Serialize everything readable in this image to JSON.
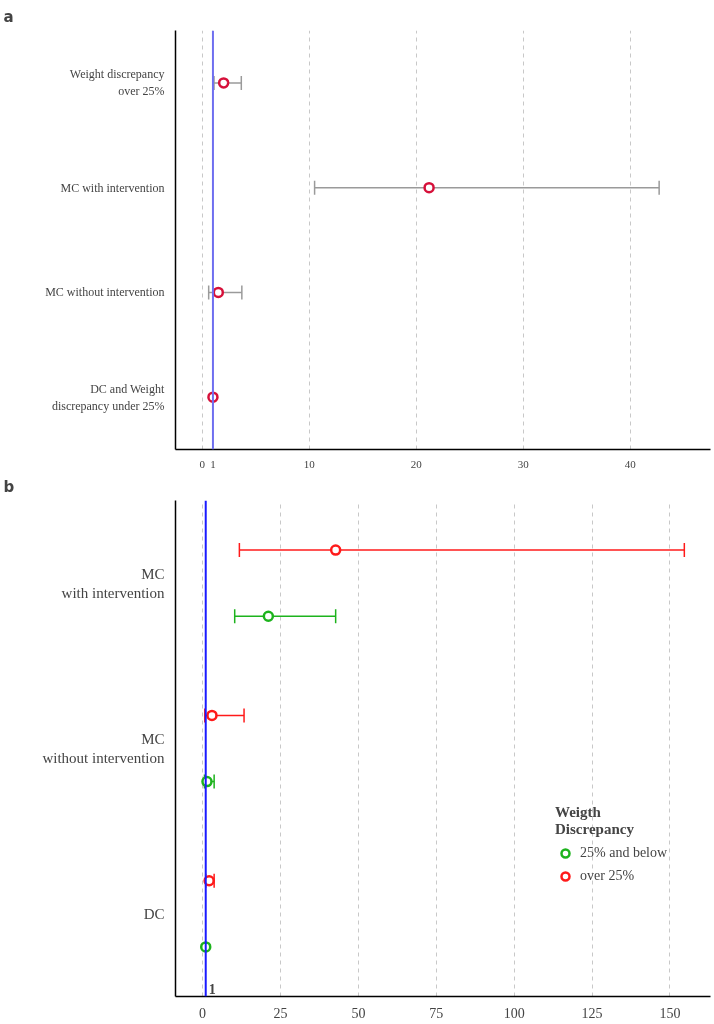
{
  "chart_data": [
    {
      "type": "scatter",
      "title": "a",
      "orientation": "horizontal",
      "categories": [
        "Weight discrepancy\nover 25%",
        "MC with intervention",
        "MC without intervention",
        "DC and Weight\ndiscrepancy under 25%"
      ],
      "series": [
        {
          "color": "#d6103a",
          "values": [
            2.0,
            21.2,
            1.5,
            1.0
          ],
          "errors": [
            [
              1.1,
              3.65
            ],
            [
              10.5,
              42.7
            ],
            [
              0.6,
              3.7
            ],
            null
          ]
        }
      ],
      "xlim": [
        -2.5,
        47.5
      ],
      "xticks": [
        0,
        1,
        10,
        20,
        30,
        40
      ],
      "grid": "x",
      "marker": "circle",
      "legend": false,
      "ref_lines": [
        {
          "axis": "x",
          "value": 1,
          "label": null,
          "color": "#6f6ff0"
        }
      ]
    },
    {
      "type": "scatter",
      "title": "b",
      "orientation": "horizontal",
      "categories": [
        "MC\nwith intervention",
        "MC\nwithout intervention",
        "DC"
      ],
      "legend_title": "Weigth\nDiscrepancy",
      "legend": "right",
      "series": [
        {
          "name": "over 25%",
          "color": "#ff1a1a",
          "values": [
            42.7,
            3.0,
            2.1
          ],
          "errors": [
            [
              11.8,
              154.6
            ],
            [
              0.7,
              13.3
            ],
            [
              1.0,
              3.7
            ]
          ]
        },
        {
          "name": "25% and below",
          "color": "#1db31d",
          "values": [
            21.1,
            1.4,
            1.0
          ],
          "errors": [
            [
              10.3,
              42.7
            ],
            [
              0.6,
              3.7
            ],
            null
          ]
        }
      ],
      "xlim": [
        -8.7,
        163
      ],
      "xticks": [
        0,
        25,
        50,
        75,
        100,
        125,
        150
      ],
      "grid": "x",
      "marker": "circle",
      "ref_lines": [
        {
          "axis": "x",
          "value": 1,
          "label": "1",
          "color": "#1a1aff"
        }
      ]
    }
  ]
}
